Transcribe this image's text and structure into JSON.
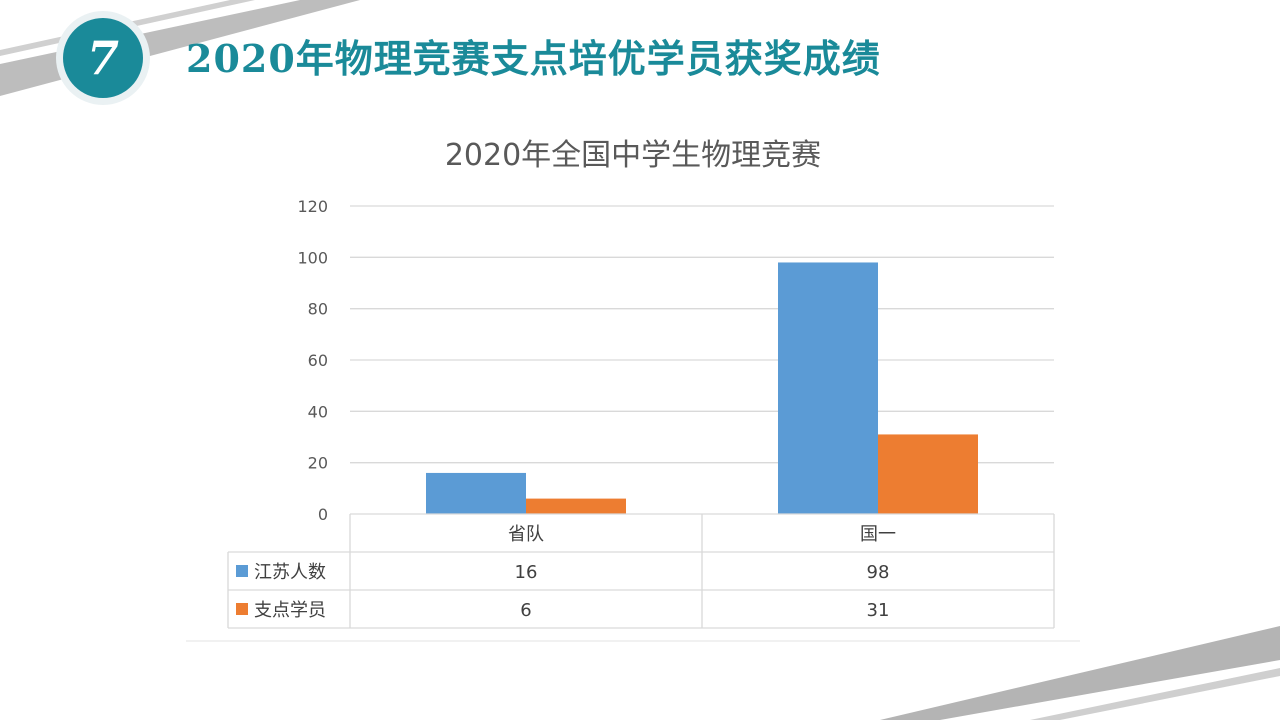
{
  "slide": {
    "number": "7",
    "title": "2020年物理竞赛支点培优学员获奖成绩"
  },
  "colors": {
    "accent": "#1a8a99",
    "series_blue": "#5b9bd5",
    "series_orange": "#ed7d31",
    "grid": "#d9d9d9",
    "deco_gray": "#b4b4b4"
  },
  "chart_data": {
    "type": "bar",
    "title": "2020年全国中学生物理竞赛",
    "categories": [
      "省队",
      "国一"
    ],
    "series": [
      {
        "name": "江苏人数",
        "values": [
          16,
          98
        ],
        "color": "#5b9bd5"
      },
      {
        "name": "支点学员",
        "values": [
          6,
          31
        ],
        "color": "#ed7d31"
      }
    ],
    "ylim": [
      0,
      120
    ],
    "yticks": [
      0,
      20,
      40,
      60,
      80,
      100,
      120
    ],
    "grid": true,
    "legend": "data-table",
    "xlabel": "",
    "ylabel": ""
  }
}
